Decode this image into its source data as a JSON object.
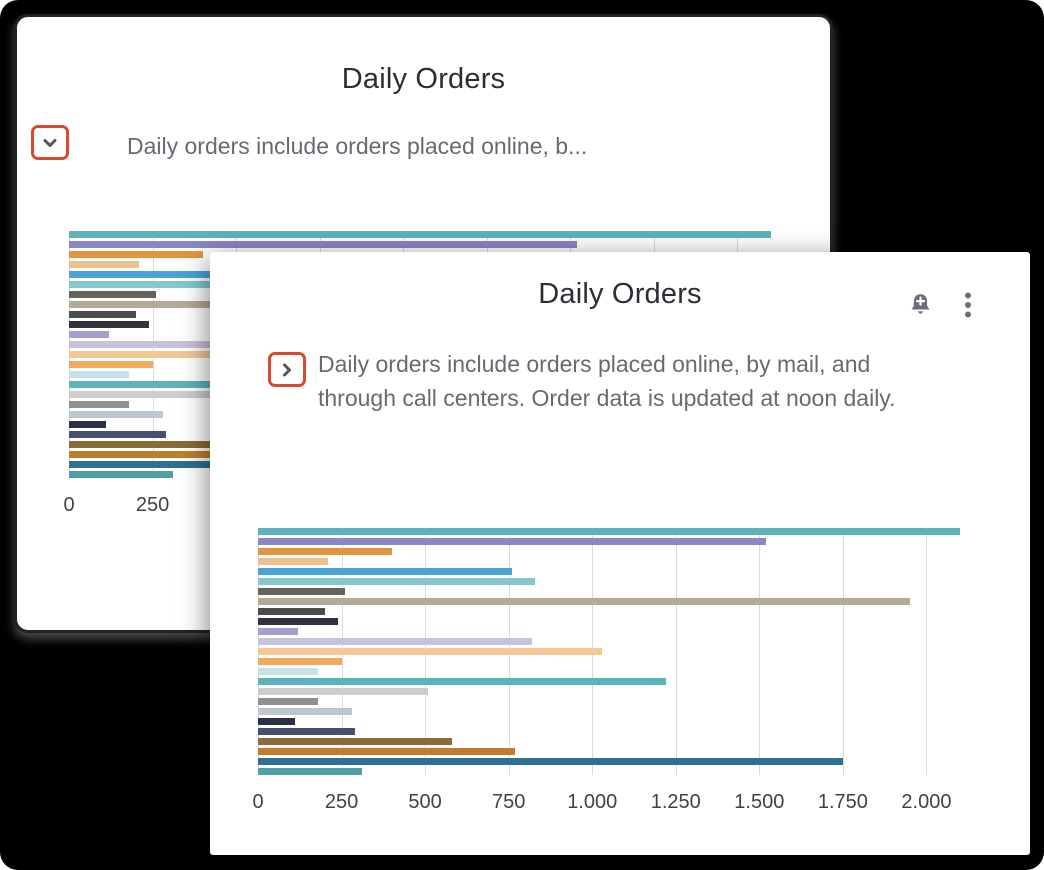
{
  "colors": {
    "background": "#000000",
    "card_background": "#ffffff",
    "highlight_border": "#d9492f",
    "title_text": "#2d2d35",
    "body_text": "#696973",
    "axis_text": "#414149",
    "gridline": "#d9d9df",
    "icon_gray": "#6d6d78"
  },
  "back_card": {
    "title": "Daily Orders",
    "description_truncated": "Daily orders include orders placed online, b...",
    "toggle_icon": "chevron-down"
  },
  "front_card": {
    "title": "Daily Orders",
    "description": "Daily orders include orders placed online, by mail, and through call centers. Order data is updated at noon daily.",
    "toggle_icon": "chevron-right",
    "toolbar_icons": [
      "bell-plus",
      "kebab-vertical"
    ]
  },
  "chart_data": {
    "type": "bar",
    "orientation": "horizontal",
    "title": "Daily Orders",
    "xlabel": "",
    "ylabel": "",
    "xlim": [
      0,
      2250
    ],
    "grid": true,
    "y_axis_labels": "none",
    "x_ticks": [
      {
        "label": "0",
        "value": 0
      },
      {
        "label": "250",
        "value": 250
      },
      {
        "label": "500",
        "value": 500
      },
      {
        "label": "750",
        "value": 750
      },
      {
        "label": "1.000",
        "value": 1000
      },
      {
        "label": "1.250",
        "value": 1250
      },
      {
        "label": "1.500",
        "value": 1500
      },
      {
        "label": "1.750",
        "value": 1750
      },
      {
        "label": "2.000",
        "value": 2000
      }
    ],
    "bars": [
      {
        "value": 2100,
        "color": "#5cb3bb"
      },
      {
        "value": 1520,
        "color": "#8b87c0"
      },
      {
        "value": 400,
        "color": "#e2953e"
      },
      {
        "value": 210,
        "color": "#eec08d"
      },
      {
        "value": 760,
        "color": "#4aa2d8"
      },
      {
        "value": 830,
        "color": "#84c8ce"
      },
      {
        "value": 260,
        "color": "#64645a"
      },
      {
        "value": 1950,
        "color": "#b4aa97"
      },
      {
        "value": 200,
        "color": "#4c4c4c"
      },
      {
        "value": 240,
        "color": "#32323e"
      },
      {
        "value": 120,
        "color": "#a79dce"
      },
      {
        "value": 820,
        "color": "#c7c1de"
      },
      {
        "value": 1030,
        "color": "#f4c795"
      },
      {
        "value": 250,
        "color": "#f1a95e"
      },
      {
        "value": 180,
        "color": "#c5e3e7"
      },
      {
        "value": 1220,
        "color": "#5cb3bb"
      },
      {
        "value": 510,
        "color": "#cdcdcd"
      },
      {
        "value": 180,
        "color": "#909090"
      },
      {
        "value": 280,
        "color": "#bcc7d1"
      },
      {
        "value": 110,
        "color": "#2c3046"
      },
      {
        "value": 290,
        "color": "#47516d"
      },
      {
        "value": 580,
        "color": "#8a6a36"
      },
      {
        "value": 770,
        "color": "#c07d2f"
      },
      {
        "value": 1750,
        "color": "#2d7092"
      },
      {
        "value": 310,
        "color": "#4f9fa9"
      }
    ]
  }
}
